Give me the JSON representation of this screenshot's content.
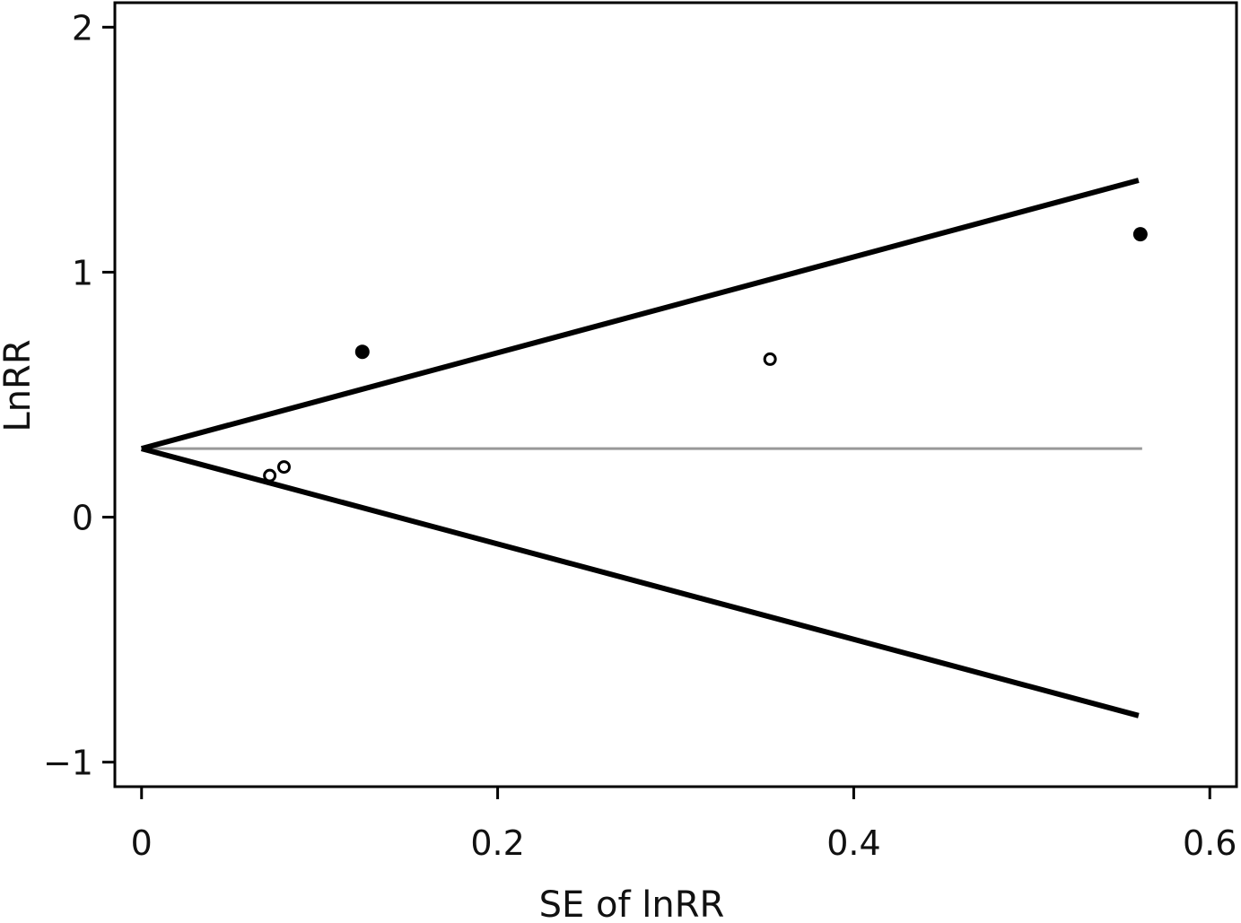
{
  "chart_data": {
    "type": "scatter",
    "title": "",
    "xlabel": "SE of lnRR",
    "ylabel": "LnRR",
    "xlim": [
      -0.015,
      0.615
    ],
    "ylim": [
      -1.1,
      2.1
    ],
    "x_ticks": [
      {
        "value": 0,
        "label": "0"
      },
      {
        "value": 0.2,
        "label": "0.2"
      },
      {
        "value": 0.4,
        "label": "0.4"
      },
      {
        "value": 0.6,
        "label": "0.6"
      }
    ],
    "y_ticks": [
      {
        "value": -1,
        "label": "−1"
      },
      {
        "value": 0,
        "label": "0"
      },
      {
        "value": 1,
        "label": "1"
      },
      {
        "value": 2,
        "label": "2"
      }
    ],
    "grid": false,
    "legend": "none",
    "pooled_estimate": {
      "y": 0.28,
      "x_range": [
        0,
        0.562
      ],
      "color": "#999999"
    },
    "pseudo_ci_lines": {
      "upper": [
        [
          0,
          0.28
        ],
        [
          0.56,
          1.375
        ]
      ],
      "lower": [
        [
          0,
          0.28
        ],
        [
          0.56,
          -0.81
        ]
      ],
      "color": "#000000"
    },
    "points": [
      {
        "x": 0.072,
        "y": 0.17,
        "filled": false
      },
      {
        "x": 0.08,
        "y": 0.205,
        "filled": false
      },
      {
        "x": 0.124,
        "y": 0.675,
        "filled": true
      },
      {
        "x": 0.353,
        "y": 0.645,
        "filled": false
      },
      {
        "x": 0.561,
        "y": 1.155,
        "filled": true
      }
    ]
  }
}
